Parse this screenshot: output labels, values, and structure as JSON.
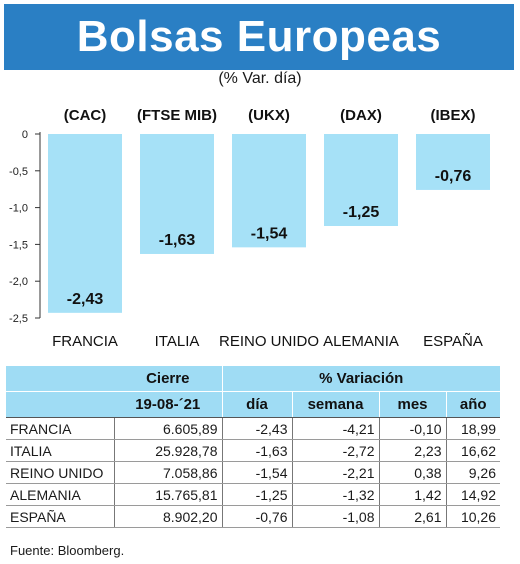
{
  "title": "Bolsas Europeas",
  "subtitle": "(% Var. día)",
  "chart_data": {
    "type": "bar",
    "index_labels": [
      "(CAC)",
      "(FTSE MIB)",
      "(UKX)",
      "(DAX)",
      "(IBEX)"
    ],
    "categories": [
      "FRANCIA",
      "ITALIA",
      "REINO UNIDO",
      "ALEMANIA",
      "ESPAÑA"
    ],
    "values": [
      -2.43,
      -1.63,
      -1.54,
      -1.25,
      -0.76
    ],
    "value_labels": [
      "-2,43",
      "-1,63",
      "-1,54",
      "-1,25",
      "-0,76"
    ],
    "ylim": [
      -2.5,
      0
    ],
    "yticks": [
      0,
      -0.5,
      -1.0,
      -1.5,
      -2.0,
      -2.5
    ],
    "ytick_labels": [
      "0",
      "-0,5",
      "-1,0",
      "-1,5",
      "-2,0",
      "-2,5"
    ],
    "bar_color": "#a6e1f7",
    "grid": false
  },
  "table": {
    "header_top": [
      "Cierre",
      "% Variación"
    ],
    "header_bottom": [
      "19-08-´21",
      "día",
      "semana",
      "mes",
      "año"
    ],
    "rows": [
      [
        "FRANCIA",
        "6.605,89",
        "-2,43",
        "-4,21",
        "-0,10",
        "18,99"
      ],
      [
        "ITALIA",
        "25.928,78",
        "-1,63",
        "-2,72",
        "2,23",
        "16,62"
      ],
      [
        "REINO UNIDO",
        "7.058,86",
        "-1,54",
        "-2,21",
        "0,38",
        "9,26"
      ],
      [
        "ALEMANIA",
        "15.765,81",
        "-1,25",
        "-1,32",
        "1,42",
        "14,92"
      ],
      [
        "ESPAÑA",
        "8.902,20",
        "-0,76",
        "-1,08",
        "2,61",
        "10,26"
      ]
    ]
  },
  "source": "Fuente: Bloomberg.",
  "colors": {
    "title_bg": "#2a7fc4",
    "header_bg": "#9fdcf4"
  }
}
